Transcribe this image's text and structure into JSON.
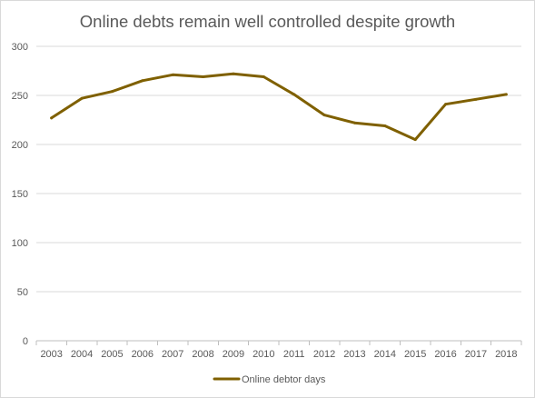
{
  "chart_data": {
    "type": "line",
    "title": "Online debts remain well controlled despite growth",
    "xlabel": "",
    "ylabel": "",
    "categories": [
      "2003",
      "2004",
      "2005",
      "2006",
      "2007",
      "2008",
      "2009",
      "2010",
      "2011",
      "2012",
      "2013",
      "2014",
      "2015",
      "2016",
      "2017",
      "2018"
    ],
    "series": [
      {
        "name": "Online debtor days",
        "values": [
          227,
          247,
          254,
          265,
          271,
          269,
          272,
          269,
          251,
          230,
          222,
          219,
          205,
          241,
          246,
          251
        ],
        "color": "#7f6000"
      }
    ],
    "ylim": [
      0,
      300
    ],
    "yticks": [
      0,
      50,
      100,
      150,
      200,
      250,
      300
    ],
    "grid": true,
    "legend_position": "bottom"
  }
}
